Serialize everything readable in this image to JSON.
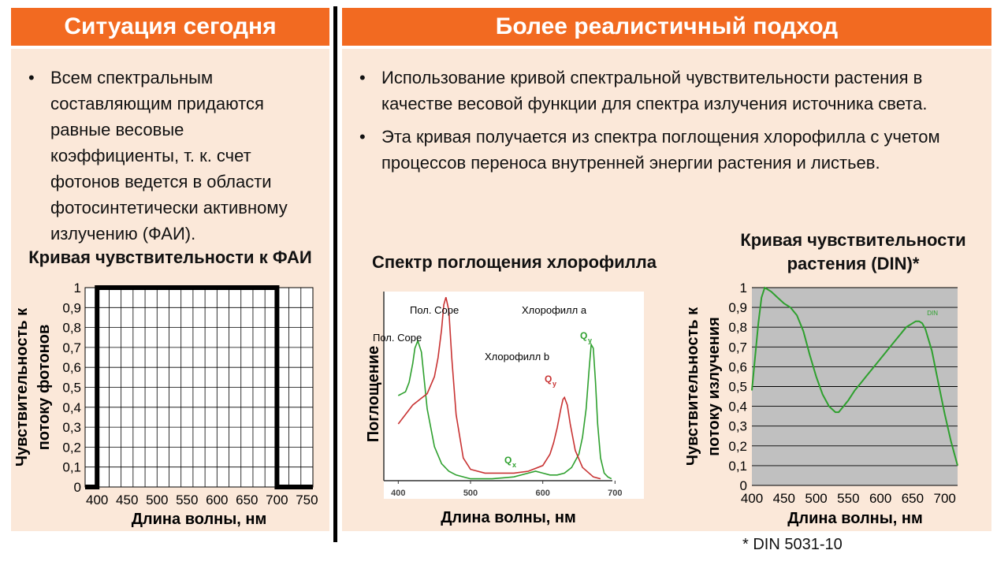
{
  "left": {
    "header": "Ситуация сегодня",
    "bullets": [
      "Всем спектральным составляющим придаются равные весовые коэффициенты, т. к. счет фотонов ведется в области фотосинтетически активному излучению (ФАИ)."
    ]
  },
  "right": {
    "header": "Более реалистичный подход",
    "bullets": [
      "Использование кривой спектральной чувствительности растения в качестве весовой функции для спектра излучения источника света.",
      "Эта кривая получается из спектра поглощения хлорофилла с учетом процессов переноса внутренней энергии растения и листьев."
    ]
  },
  "footnote": "* DIN 5031-10",
  "chart_data": [
    {
      "type": "line",
      "title": "Кривая чувствительности к ФАИ",
      "xlabel": "Длина волны, нм",
      "ylabel": "Чувствительность к потоку фотонов",
      "x_ticks": [
        "400",
        "450",
        "500",
        "550",
        "600",
        "650",
        "700",
        "750"
      ],
      "y_ticks": [
        "0",
        "0,1",
        "0,2",
        "0,3",
        "0,4",
        "0,5",
        "0,6",
        "0,7",
        "0,8",
        "0,9",
        "1"
      ],
      "xlim": [
        380,
        760
      ],
      "ylim": [
        0,
        1
      ],
      "grid": true,
      "series": [
        {
          "x": [
            380,
            400,
            400,
            700,
            700,
            760
          ],
          "y": [
            0,
            0,
            1,
            1,
            0,
            0
          ]
        }
      ]
    },
    {
      "type": "line",
      "title": "Спектр поглощения хлорофилла",
      "xlabel": "Длина волны, нм",
      "ylabel": "Поглощение",
      "x_ticks": [
        "400",
        "500",
        "600",
        "700"
      ],
      "xlim": [
        380,
        740
      ],
      "ylim": [
        0,
        1
      ],
      "annotations": [
        "Пол. Соре",
        "Пол. Соре",
        "Хлорофилл a",
        "Хлорофилл b",
        "Q",
        "Q",
        "Q"
      ],
      "annotation_subscripts": [
        "y",
        "y",
        "x"
      ],
      "series": [
        {
          "color": "#2ea02e",
          "x": [
            400,
            410,
            415,
            420,
            423,
            427,
            432,
            440,
            450,
            460,
            470,
            480,
            500,
            530,
            560,
            580,
            590,
            600,
            610,
            620,
            630,
            640,
            650,
            655,
            660,
            664,
            667,
            670,
            673,
            676,
            680,
            685,
            690,
            695
          ],
          "y": [
            0.45,
            0.47,
            0.52,
            0.62,
            0.7,
            0.74,
            0.68,
            0.38,
            0.18,
            0.09,
            0.05,
            0.03,
            0.01,
            0.01,
            0.02,
            0.04,
            0.05,
            0.04,
            0.03,
            0.03,
            0.04,
            0.07,
            0.14,
            0.23,
            0.38,
            0.58,
            0.72,
            0.7,
            0.52,
            0.3,
            0.12,
            0.04,
            0.02,
            0.01
          ]
        },
        {
          "color": "#c83232",
          "x": [
            400,
            410,
            420,
            430,
            440,
            450,
            455,
            460,
            463,
            466,
            470,
            474,
            480,
            490,
            500,
            520,
            540,
            560,
            580,
            600,
            610,
            615,
            620,
            625,
            628,
            630,
            634,
            638,
            645,
            655,
            670,
            680
          ],
          "y": [
            0.3,
            0.35,
            0.4,
            0.43,
            0.46,
            0.55,
            0.65,
            0.8,
            0.93,
            0.97,
            0.9,
            0.65,
            0.35,
            0.12,
            0.06,
            0.04,
            0.04,
            0.04,
            0.05,
            0.08,
            0.14,
            0.2,
            0.28,
            0.38,
            0.43,
            0.44,
            0.4,
            0.3,
            0.16,
            0.07,
            0.02,
            0.01
          ]
        }
      ]
    },
    {
      "type": "line",
      "title": "Кривая чувствительности растения (DIN)*",
      "xlabel": "Длина волны, нм",
      "ylabel": "Чувствительность к потоку излучения",
      "x_ticks": [
        "400",
        "450",
        "500",
        "550",
        "600",
        "650",
        "700"
      ],
      "y_ticks": [
        "0",
        "0,1",
        "0,2",
        "0,3",
        "0,4",
        "0,5",
        "0,6",
        "0,7",
        "0,8",
        "0,9",
        "1"
      ],
      "xlim": [
        400,
        720
      ],
      "ylim": [
        0,
        1
      ],
      "grid": true,
      "legend_text": "DIN",
      "series": [
        {
          "color": "#2ea02e",
          "x": [
            400,
            405,
            410,
            415,
            420,
            430,
            440,
            450,
            460,
            470,
            480,
            490,
            500,
            510,
            520,
            530,
            535,
            540,
            550,
            560,
            570,
            580,
            590,
            600,
            610,
            620,
            630,
            640,
            650,
            655,
            660,
            665,
            670,
            680,
            690,
            700,
            710,
            720
          ],
          "y": [
            0.48,
            0.65,
            0.82,
            0.95,
            1.0,
            0.98,
            0.95,
            0.92,
            0.9,
            0.86,
            0.78,
            0.66,
            0.55,
            0.46,
            0.4,
            0.37,
            0.37,
            0.39,
            0.43,
            0.48,
            0.52,
            0.56,
            0.6,
            0.64,
            0.68,
            0.72,
            0.76,
            0.8,
            0.82,
            0.83,
            0.83,
            0.82,
            0.79,
            0.68,
            0.52,
            0.36,
            0.22,
            0.1
          ]
        }
      ]
    }
  ]
}
